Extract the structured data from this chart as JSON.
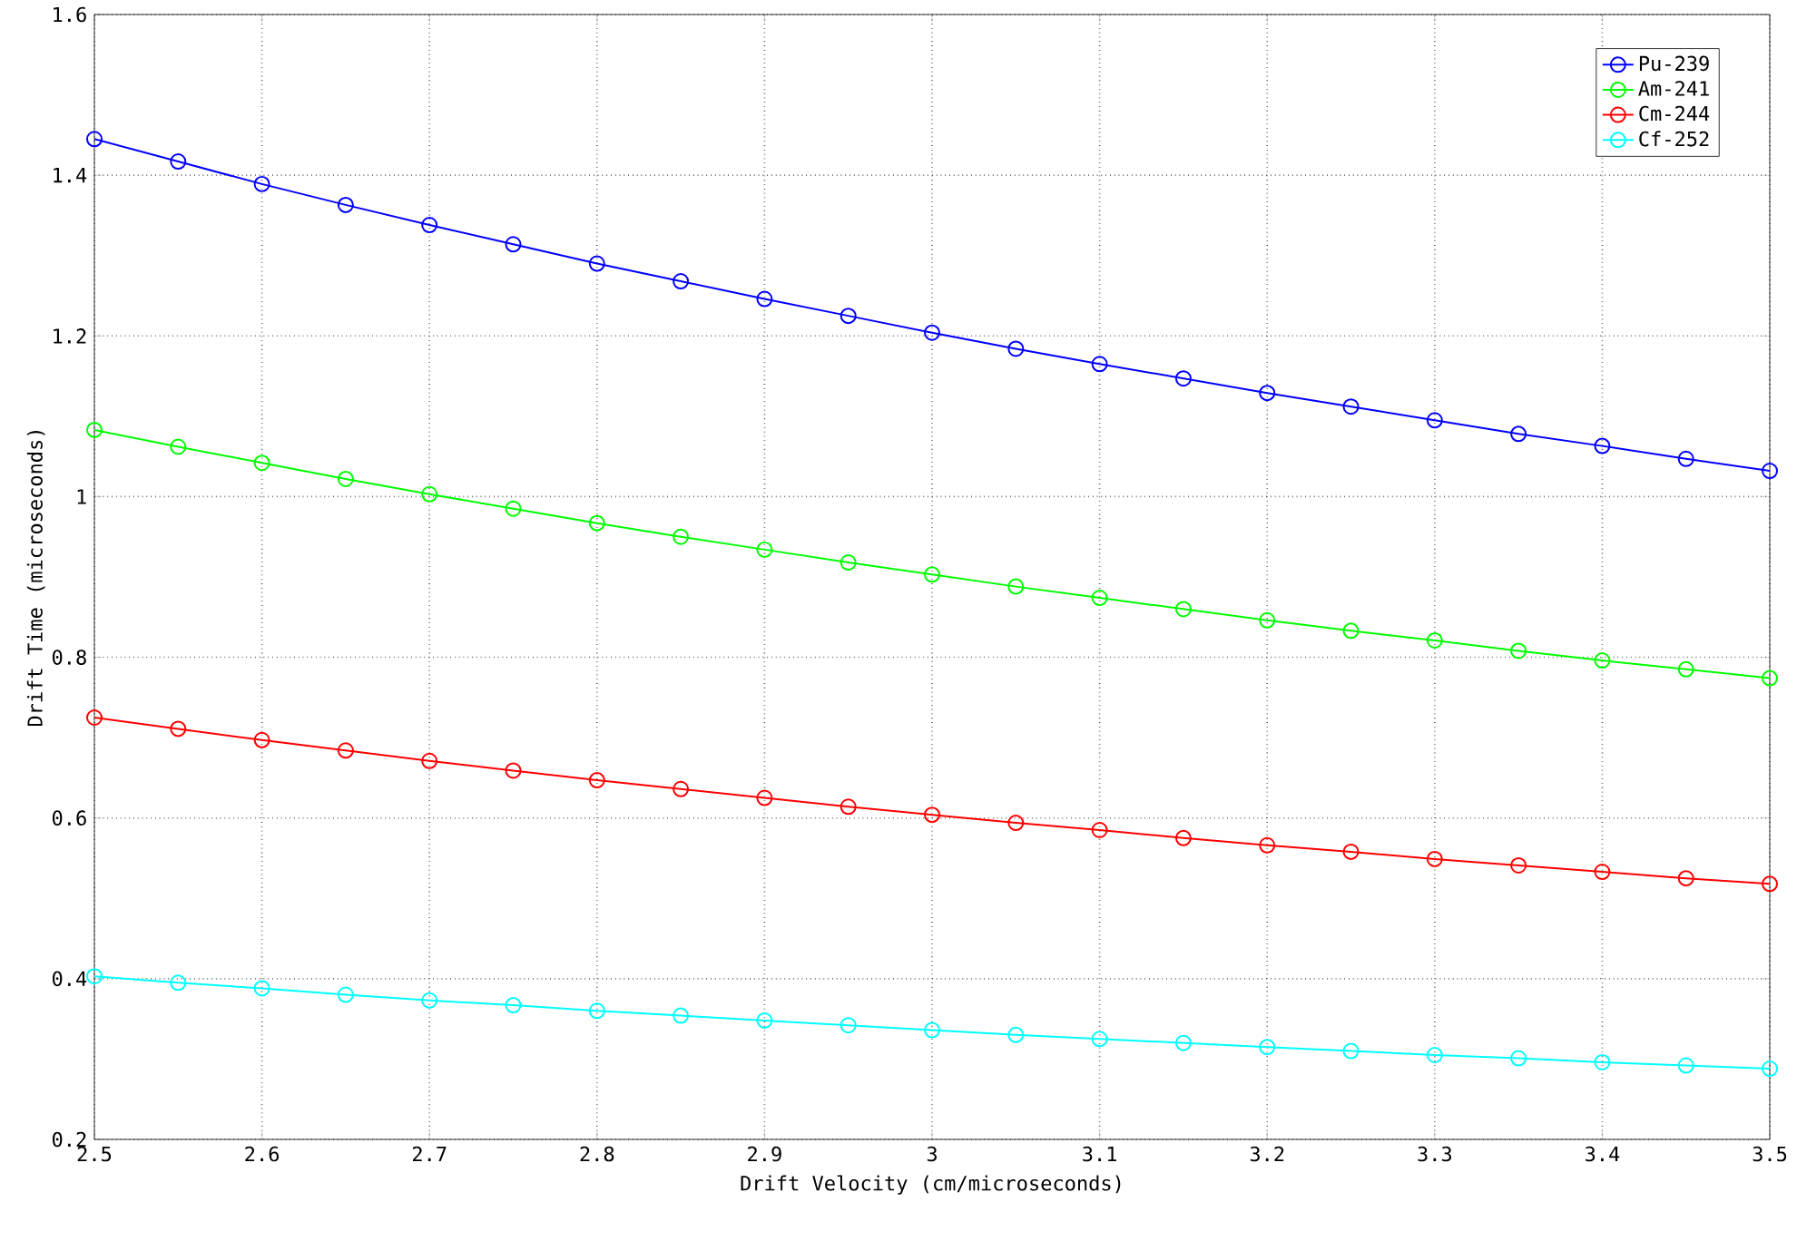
{
  "chart_data": {
    "type": "line",
    "xlabel": "Drift Velocity (cm/microseconds)",
    "ylabel": "Drift Time (microseconds)",
    "x": [
      2.5,
      2.55,
      2.6,
      2.65,
      2.7,
      2.75,
      2.8,
      2.85,
      2.9,
      2.95,
      3.0,
      3.05,
      3.1,
      3.15,
      3.2,
      3.25,
      3.3,
      3.35,
      3.4,
      3.45,
      3.5
    ],
    "series": [
      {
        "name": "Pu-239",
        "color": "#0000ff",
        "values": [
          1.445,
          1.417,
          1.389,
          1.363,
          1.338,
          1.314,
          1.29,
          1.268,
          1.246,
          1.225,
          1.204,
          1.184,
          1.165,
          1.147,
          1.129,
          1.112,
          1.095,
          1.078,
          1.063,
          1.047,
          1.032
        ]
      },
      {
        "name": "Am-241",
        "color": "#00ff00",
        "values": [
          1.083,
          1.062,
          1.042,
          1.022,
          1.003,
          0.985,
          0.967,
          0.95,
          0.934,
          0.918,
          0.903,
          0.888,
          0.874,
          0.86,
          0.846,
          0.833,
          0.821,
          0.808,
          0.796,
          0.785,
          0.774
        ]
      },
      {
        "name": "Cm-244",
        "color": "#ff0000",
        "values": [
          0.725,
          0.711,
          0.697,
          0.684,
          0.671,
          0.659,
          0.647,
          0.636,
          0.625,
          0.614,
          0.604,
          0.594,
          0.585,
          0.575,
          0.566,
          0.558,
          0.549,
          0.541,
          0.533,
          0.525,
          0.518
        ]
      },
      {
        "name": "Cf-252",
        "color": "#00ffff",
        "values": [
          0.403,
          0.395,
          0.388,
          0.38,
          0.373,
          0.367,
          0.36,
          0.354,
          0.348,
          0.342,
          0.336,
          0.33,
          0.325,
          0.32,
          0.315,
          0.31,
          0.305,
          0.301,
          0.296,
          0.292,
          0.288
        ]
      }
    ],
    "xlim": [
      2.5,
      3.5
    ],
    "xticks": [
      2.5,
      2.6,
      2.7,
      2.8,
      2.9,
      3,
      3.1,
      3.2,
      3.3,
      3.4,
      3.5
    ],
    "ylim": [
      0.2,
      1.6
    ],
    "yticks": [
      0.2,
      0.4,
      0.6,
      0.8,
      1,
      1.2,
      1.4,
      1.6
    ],
    "grid": true,
    "legend": "top right",
    "marker": "circle",
    "line_style": "solid"
  }
}
